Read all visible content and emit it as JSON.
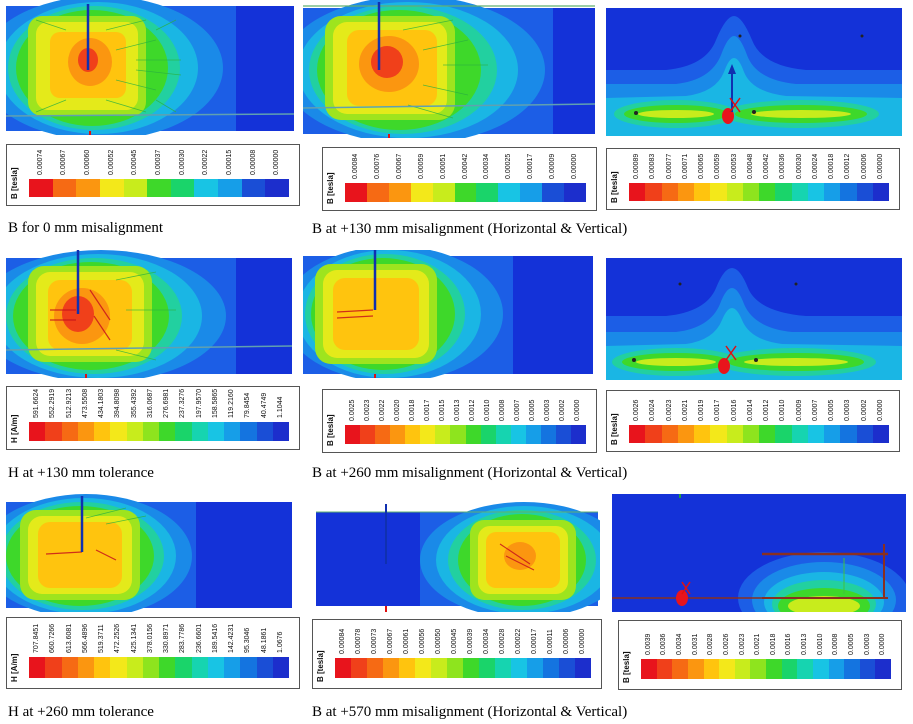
{
  "captions": {
    "r1c1": "B for 0 mm misalignment",
    "r1c2": "B at +130 mm misalignment (Horizontal & Vertical)",
    "r2c1": "H at +130 mm tolerance",
    "r2c2": "B at +260 mm misalignment   (Horizontal & Vertical)",
    "r3c1": "H at +260 mm tolerance",
    "r3c2": "B at +570 mm misalignment (Horizontal & Vertical)"
  },
  "legends": {
    "r1c1": {
      "unit": "B [tesla]",
      "ticks": [
        "0.00074",
        "0.00067",
        "0.00060",
        "0.00052",
        "0.00045",
        "0.00037",
        "0.00030",
        "0.00022",
        "0.00015",
        "0.00008",
        "0.00000"
      ]
    },
    "r1c2": {
      "unit": "B [tesla]",
      "ticks": [
        "0.00084",
        "0.00076",
        "0.00067",
        "0.00059",
        "0.00051",
        "0.00042",
        "0.00034",
        "0.00025",
        "0.00017",
        "0.00009",
        "0.00000"
      ]
    },
    "r1c3": {
      "unit": "B [tesla]",
      "ticks": [
        "0.00089",
        "0.00083",
        "0.00077",
        "0.00071",
        "0.00065",
        "0.00059",
        "0.00053",
        "0.00048",
        "0.00042",
        "0.00036",
        "0.00030",
        "0.00024",
        "0.00018",
        "0.00012",
        "0.00006",
        "0.00000"
      ]
    },
    "r2c1": {
      "unit": "H [A/m]",
      "ticks": [
        "591.6624",
        "552.2919",
        "512.9213",
        "473.5508",
        "434.1803",
        "394.8098",
        "355.4392",
        "316.0687",
        "276.6981",
        "237.3276",
        "197.9570",
        "158.5865",
        "119.2160",
        "79.8454",
        "40.4749",
        "1.1044"
      ]
    },
    "r2c2": {
      "unit": "B [tesla]",
      "ticks": [
        "0.0025",
        "0.0023",
        "0.0022",
        "0.0020",
        "0.0018",
        "0.0017",
        "0.0015",
        "0.0013",
        "0.0012",
        "0.0010",
        "0.0008",
        "0.0007",
        "0.0005",
        "0.0003",
        "0.0002",
        "0.0000"
      ]
    },
    "r2c3": {
      "unit": "B [tesla]",
      "ticks": [
        "0.0026",
        "0.0024",
        "0.0023",
        "0.0021",
        "0.0019",
        "0.0017",
        "0.0016",
        "0.0014",
        "0.0012",
        "0.0010",
        "0.0009",
        "0.0007",
        "0.0005",
        "0.0003",
        "0.0002",
        "0.0000"
      ]
    },
    "r3c1": {
      "unit": "H [A/m]",
      "ticks": [
        "707.8451",
        "660.7266",
        "613.6081",
        "566.4896",
        "519.3711",
        "472.2526",
        "425.1341",
        "378.0156",
        "330.8971",
        "283.7786",
        "236.6601",
        "189.5416",
        "142.4231",
        "95.3046",
        "48.1861",
        "1.0676"
      ]
    },
    "r3c2": {
      "unit": "B [tesla]",
      "ticks": [
        "0.00084",
        "0.00078",
        "0.00073",
        "0.00067",
        "0.00061",
        "0.00056",
        "0.00050",
        "0.00045",
        "0.00039",
        "0.00034",
        "0.00028",
        "0.00022",
        "0.00017",
        "0.00011",
        "0.00006",
        "0.00000"
      ]
    },
    "r3c3": {
      "unit": "B [tesla]",
      "ticks": [
        "0.0039",
        "0.0036",
        "0.0034",
        "0.0031",
        "0.0028",
        "0.0026",
        "0.0023",
        "0.0021",
        "0.0018",
        "0.0016",
        "0.0013",
        "0.0010",
        "0.0008",
        "0.0005",
        "0.0003",
        "0.0000"
      ]
    }
  },
  "colors": {
    "scale": [
      "#e8141c",
      "#f0401a",
      "#f66a14",
      "#fb9610",
      "#ffc40e",
      "#f3e81a",
      "#c8ec1c",
      "#8ee41e",
      "#3ed82a",
      "#1ad46a",
      "#16d4b0",
      "#18c4e4",
      "#169ee8",
      "#1474e0",
      "#1a4ed6",
      "#1c2ecc"
    ],
    "field_bg": "#1432d8"
  }
}
